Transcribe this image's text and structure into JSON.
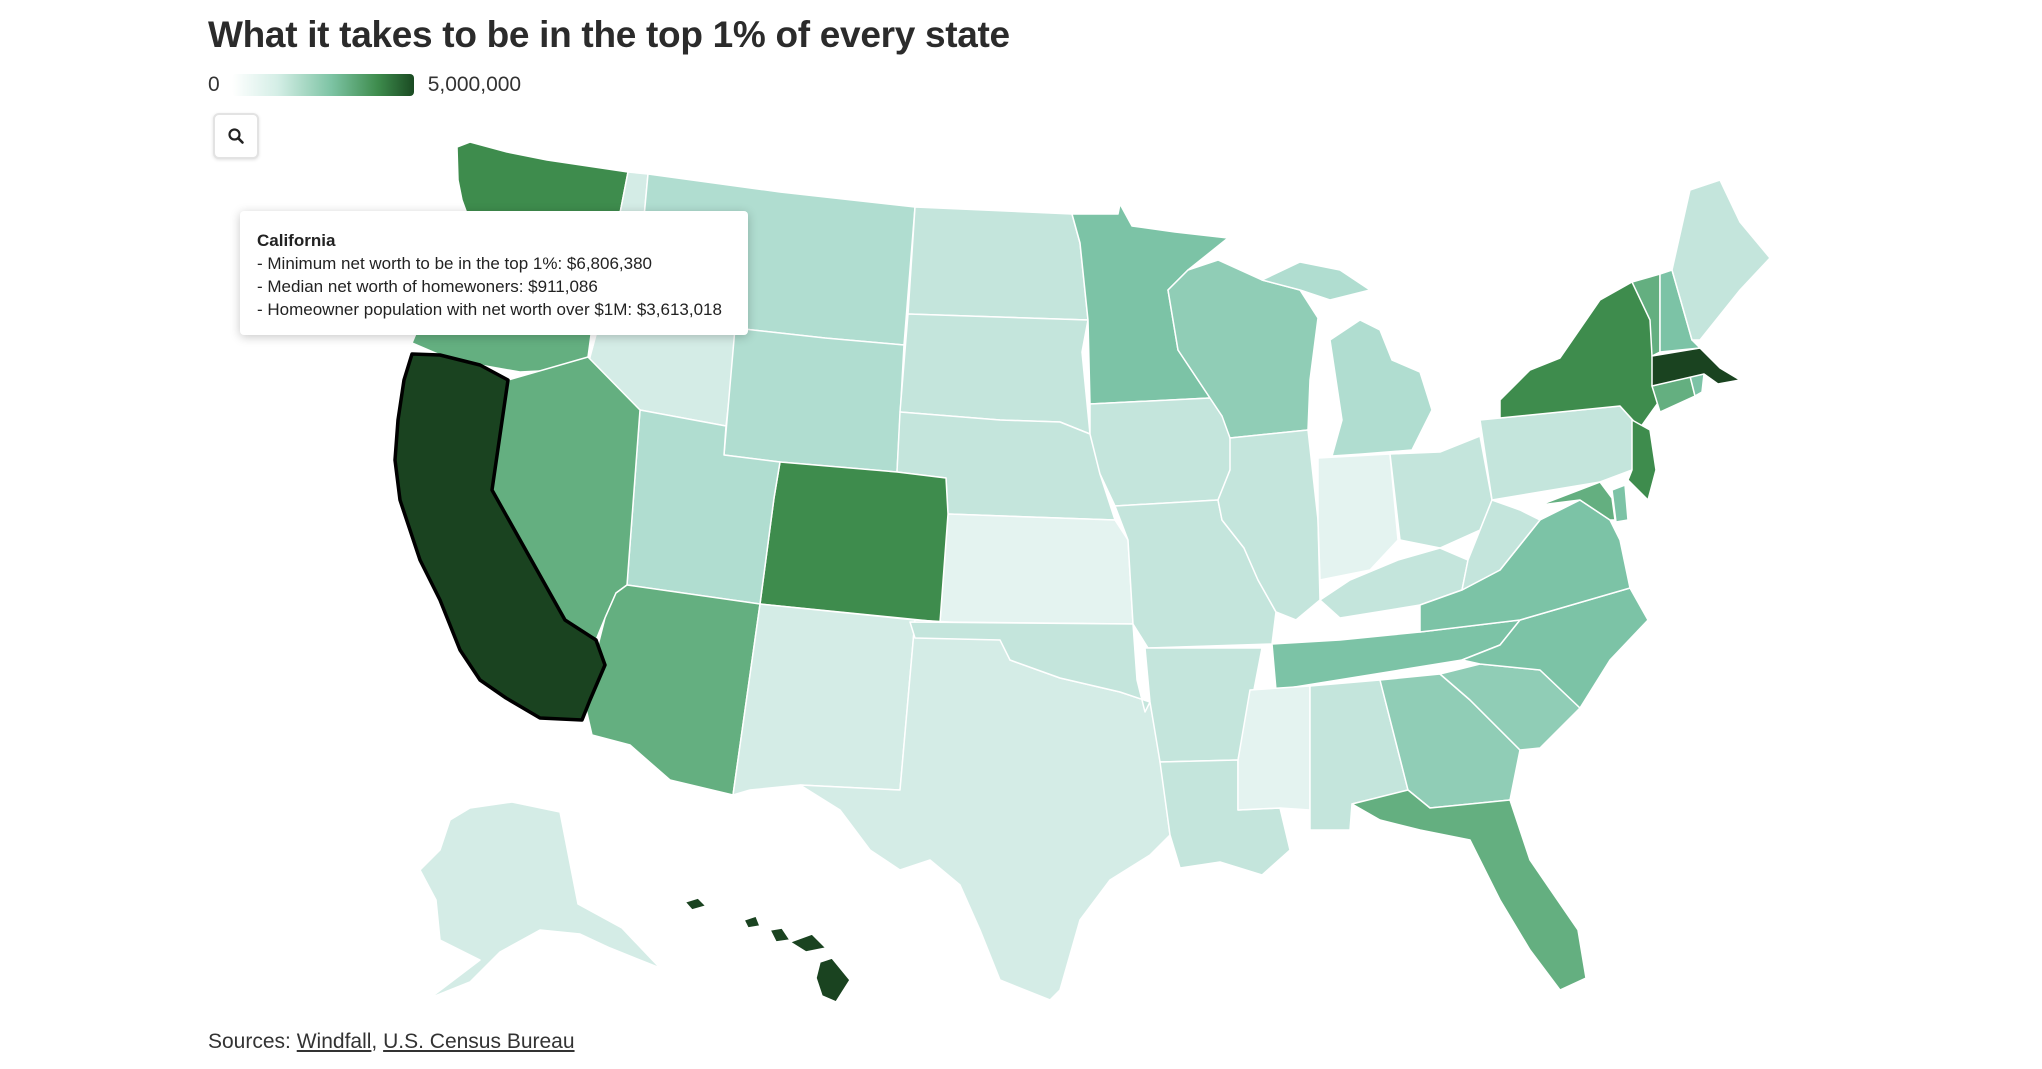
{
  "title": "What it takes to be in the top 1% of every state",
  "legend": {
    "min_label": "0",
    "max_label": "5,000,000"
  },
  "zoom_button": {
    "icon": "search-icon"
  },
  "colors": {
    "lightest": "#e4f3f0",
    "light": "#d4ece6",
    "pale": "#c4e5dc",
    "mint": "#b0ddd0",
    "medium": "#90cdb6",
    "mid": "#7cc3a6",
    "green": "#64af80",
    "darkgreen": "#3e8c4d",
    "darkest": "#1a4320"
  },
  "tooltip": {
    "state": "California",
    "line1": "- Minimum net worth to be in the top 1%: $6,806,380",
    "line2": "- Median net worth of homewoners: $911,086",
    "line3": "- Homeowner population with net worth over $1M: $3,613,018"
  },
  "sources": {
    "prefix": "Sources:",
    "link1": "Windfall",
    "separator": ",",
    "link2": "U.S. Census Bureau"
  }
}
